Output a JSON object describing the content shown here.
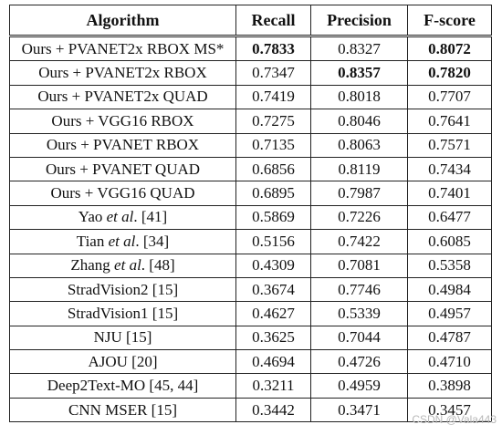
{
  "table": {
    "headers": [
      "Algorithm",
      "Recall",
      "Precision",
      "F-score"
    ],
    "rows": [
      {
        "algorithm": "Ours + PVANET2x RBOX MS*",
        "recall": "0.7833",
        "precision": "0.8327",
        "fscore": "0.8072",
        "bold": [
          "recall",
          "fscore"
        ]
      },
      {
        "algorithm": "Ours + PVANET2x RBOX",
        "recall": "0.7347",
        "precision": "0.8357",
        "fscore": "0.7820",
        "bold": [
          "precision",
          "fscore"
        ]
      },
      {
        "algorithm": "Ours + PVANET2x QUAD",
        "recall": "0.7419",
        "precision": "0.8018",
        "fscore": "0.7707",
        "bold": []
      },
      {
        "algorithm": "Ours + VGG16 RBOX",
        "recall": "0.7275",
        "precision": "0.8046",
        "fscore": "0.7641",
        "bold": []
      },
      {
        "algorithm": "Ours + PVANET RBOX",
        "recall": "0.7135",
        "precision": "0.8063",
        "fscore": "0.7571",
        "bold": []
      },
      {
        "algorithm": "Ours + PVANET QUAD",
        "recall": "0.6856",
        "precision": "0.8119",
        "fscore": "0.7434",
        "bold": []
      },
      {
        "algorithm": "Ours + VGG16 QUAD",
        "recall": "0.6895",
        "precision": "0.7987",
        "fscore": "0.7401",
        "bold": []
      },
      {
        "algorithm_parts": [
          "Yao ",
          "et al",
          ". [41]"
        ],
        "recall": "0.5869",
        "precision": "0.7226",
        "fscore": "0.6477",
        "bold": []
      },
      {
        "algorithm_parts": [
          "Tian ",
          "et al",
          ". [34]"
        ],
        "recall": "0.5156",
        "precision": "0.7422",
        "fscore": "0.6085",
        "bold": []
      },
      {
        "algorithm_parts": [
          "Zhang ",
          "et al",
          ". [48]"
        ],
        "recall": "0.4309",
        "precision": "0.7081",
        "fscore": "0.5358",
        "bold": []
      },
      {
        "algorithm": "StradVision2 [15]",
        "recall": "0.3674",
        "precision": "0.7746",
        "fscore": "0.4984",
        "bold": []
      },
      {
        "algorithm": "StradVision1 [15]",
        "recall": "0.4627",
        "precision": "0.5339",
        "fscore": "0.4957",
        "bold": []
      },
      {
        "algorithm": "NJU [15]",
        "recall": "0.3625",
        "precision": "0.7044",
        "fscore": "0.4787",
        "bold": []
      },
      {
        "algorithm": "AJOU [20]",
        "recall": "0.4694",
        "precision": "0.4726",
        "fscore": "0.4710",
        "bold": []
      },
      {
        "algorithm": "Deep2Text-MO [45, 44]",
        "recall": "0.3211",
        "precision": "0.4959",
        "fscore": "0.3898",
        "bold": []
      },
      {
        "algorithm": "CNN MSER [15]",
        "recall": "0.3442",
        "precision": "0.3471",
        "fscore": "0.3457",
        "bold": []
      }
    ]
  },
  "watermark": "CSDN @Vala443"
}
